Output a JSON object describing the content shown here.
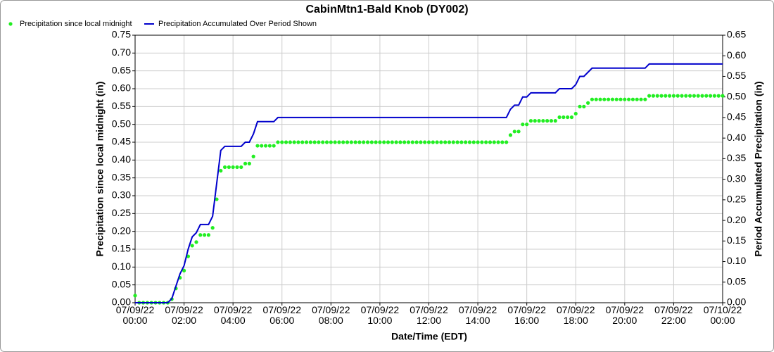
{
  "chart_data": {
    "type": "combo",
    "title": "CabinMtn1-Bald Knob (DY002)",
    "x_label": "Date/Time (EDT)",
    "y_label": "Precipitation since local midnight (in)",
    "y2_label": "Period Accumulated Precipitation (in)",
    "grid": true,
    "legend": "top-left",
    "x": [
      0,
      10,
      20,
      30,
      40,
      50,
      60,
      70,
      80,
      90,
      100,
      110,
      120,
      130,
      140,
      150,
      160,
      170,
      180,
      190,
      200,
      210,
      220,
      230,
      240,
      250,
      260,
      270,
      280,
      290,
      300,
      310,
      320,
      330,
      340,
      350,
      360,
      370,
      380,
      390,
      400,
      410,
      420,
      430,
      440,
      450,
      460,
      470,
      480,
      490,
      500,
      510,
      520,
      530,
      540,
      550,
      560,
      570,
      580,
      590,
      600,
      610,
      620,
      630,
      640,
      650,
      660,
      670,
      680,
      690,
      700,
      710,
      720,
      730,
      740,
      750,
      760,
      770,
      780,
      790,
      800,
      810,
      820,
      830,
      840,
      850,
      860,
      870,
      880,
      890,
      900,
      910,
      920,
      930,
      940,
      950,
      960,
      970,
      980,
      990,
      1000,
      1010,
      1020,
      1030,
      1040,
      1050,
      1060,
      1070,
      1080,
      1090,
      1100,
      1110,
      1120,
      1130,
      1140,
      1150,
      1160,
      1170,
      1180,
      1190,
      1200,
      1210,
      1220,
      1230,
      1240,
      1250,
      1260,
      1270,
      1280,
      1290,
      1300,
      1310,
      1320,
      1330,
      1340,
      1350,
      1360,
      1370,
      1380,
      1390,
      1400,
      1410,
      1420,
      1430,
      1440
    ],
    "xlim": [
      0,
      1440
    ],
    "xticks": [
      {
        "value": 0,
        "label": "07/09/22 00:00"
      },
      {
        "value": 120,
        "label": "07/09/22 02:00"
      },
      {
        "value": 240,
        "label": "07/09/22 04:00"
      },
      {
        "value": 360,
        "label": "07/09/22 06:00"
      },
      {
        "value": 480,
        "label": "07/09/22 08:00"
      },
      {
        "value": 600,
        "label": "07/09/22 10:00"
      },
      {
        "value": 720,
        "label": "07/09/22 12:00"
      },
      {
        "value": 840,
        "label": "07/09/22 14:00"
      },
      {
        "value": 960,
        "label": "07/09/22 16:00"
      },
      {
        "value": 1080,
        "label": "07/09/22 18:00"
      },
      {
        "value": 1200,
        "label": "07/09/22 20:00"
      },
      {
        "value": 1320,
        "label": "07/09/22 22:00"
      },
      {
        "value": 1440,
        "label": "07/10/22 00:00"
      }
    ],
    "ylim": [
      0,
      0.75
    ],
    "yticks": [
      {
        "value": 0,
        "label": "0.00"
      },
      {
        "value": 0.05,
        "label": "0.05"
      },
      {
        "value": 0.1,
        "label": "0.10"
      },
      {
        "value": 0.15,
        "label": "0.15"
      },
      {
        "value": 0.2,
        "label": "0.20"
      },
      {
        "value": 0.25,
        "label": "0.25"
      },
      {
        "value": 0.3,
        "label": "0.30"
      },
      {
        "value": 0.35,
        "label": "0.35"
      },
      {
        "value": 0.4,
        "label": "0.40"
      },
      {
        "value": 0.45,
        "label": "0.45"
      },
      {
        "value": 0.5,
        "label": "0.50"
      },
      {
        "value": 0.55,
        "label": "0.55"
      },
      {
        "value": 0.6,
        "label": "0.60"
      },
      {
        "value": 0.65,
        "label": "0.65"
      },
      {
        "value": 0.7,
        "label": "0.70"
      },
      {
        "value": 0.75,
        "label": "0.75"
      }
    ],
    "y2lim": [
      0,
      0.65
    ],
    "y2ticks": [
      {
        "value": 0,
        "label": "0.00"
      },
      {
        "value": 0.05,
        "label": "0.05"
      },
      {
        "value": 0.1,
        "label": "0.10"
      },
      {
        "value": 0.15,
        "label": "0.15"
      },
      {
        "value": 0.2,
        "label": "0.20"
      },
      {
        "value": 0.25,
        "label": "0.25"
      },
      {
        "value": 0.3,
        "label": "0.30"
      },
      {
        "value": 0.35,
        "label": "0.35"
      },
      {
        "value": 0.4,
        "label": "0.40"
      },
      {
        "value": 0.45,
        "label": "0.45"
      },
      {
        "value": 0.5,
        "label": "0.50"
      },
      {
        "value": 0.55,
        "label": "0.55"
      },
      {
        "value": 0.6,
        "label": "0.60"
      },
      {
        "value": 0.65,
        "label": "0.65"
      }
    ],
    "series": [
      {
        "name": "Precipitation since local midnight",
        "type": "scatter",
        "color": "#22ee22",
        "values": [
          0.02,
          0,
          0,
          0,
          0,
          0,
          0,
          0,
          0,
          0.01,
          0.04,
          0.07,
          0.09,
          0.13,
          0.16,
          0.17,
          0.19,
          0.19,
          0.19,
          0.21,
          0.29,
          0.37,
          0.38,
          0.38,
          0.38,
          0.38,
          0.38,
          0.39,
          0.39,
          0.41,
          0.44,
          0.44,
          0.44,
          0.44,
          0.44,
          0.45,
          0.45,
          0.45,
          0.45,
          0.45,
          0.45,
          0.45,
          0.45,
          0.45,
          0.45,
          0.45,
          0.45,
          0.45,
          0.45,
          0.45,
          0.45,
          0.45,
          0.45,
          0.45,
          0.45,
          0.45,
          0.45,
          0.45,
          0.45,
          0.45,
          0.45,
          0.45,
          0.45,
          0.45,
          0.45,
          0.45,
          0.45,
          0.45,
          0.45,
          0.45,
          0.45,
          0.45,
          0.45,
          0.45,
          0.45,
          0.45,
          0.45,
          0.45,
          0.45,
          0.45,
          0.45,
          0.45,
          0.45,
          0.45,
          0.45,
          0.45,
          0.45,
          0.45,
          0.45,
          0.45,
          0.45,
          0.45,
          0.47,
          0.48,
          0.48,
          0.5,
          0.5,
          0.51,
          0.51,
          0.51,
          0.51,
          0.51,
          0.51,
          0.51,
          0.52,
          0.52,
          0.52,
          0.52,
          0.53,
          0.55,
          0.55,
          0.56,
          0.57,
          0.57,
          0.57,
          0.57,
          0.57,
          0.57,
          0.57,
          0.57,
          0.57,
          0.57,
          0.57,
          0.57,
          0.57,
          0.57,
          0.58,
          0.58,
          0.58,
          0.58,
          0.58,
          0.58,
          0.58,
          0.58,
          0.58,
          0.58,
          0.58,
          0.58,
          0.58,
          0.58,
          0.58,
          0.58,
          0.58,
          0.58,
          0.58
        ]
      },
      {
        "name": "Precipitation Accumulated Over Period Shown",
        "type": "line",
        "axis": "y2",
        "color": "#0000cc",
        "values": [
          0,
          0,
          0,
          0,
          0,
          0,
          0,
          0,
          0,
          0.01,
          0.04,
          0.07,
          0.09,
          0.13,
          0.16,
          0.17,
          0.19,
          0.19,
          0.19,
          0.21,
          0.29,
          0.37,
          0.38,
          0.38,
          0.38,
          0.38,
          0.38,
          0.39,
          0.39,
          0.41,
          0.44,
          0.44,
          0.44,
          0.44,
          0.44,
          0.45,
          0.45,
          0.45,
          0.45,
          0.45,
          0.45,
          0.45,
          0.45,
          0.45,
          0.45,
          0.45,
          0.45,
          0.45,
          0.45,
          0.45,
          0.45,
          0.45,
          0.45,
          0.45,
          0.45,
          0.45,
          0.45,
          0.45,
          0.45,
          0.45,
          0.45,
          0.45,
          0.45,
          0.45,
          0.45,
          0.45,
          0.45,
          0.45,
          0.45,
          0.45,
          0.45,
          0.45,
          0.45,
          0.45,
          0.45,
          0.45,
          0.45,
          0.45,
          0.45,
          0.45,
          0.45,
          0.45,
          0.45,
          0.45,
          0.45,
          0.45,
          0.45,
          0.45,
          0.45,
          0.45,
          0.45,
          0.45,
          0.47,
          0.48,
          0.48,
          0.5,
          0.5,
          0.51,
          0.51,
          0.51,
          0.51,
          0.51,
          0.51,
          0.51,
          0.52,
          0.52,
          0.52,
          0.52,
          0.53,
          0.55,
          0.55,
          0.56,
          0.57,
          0.57,
          0.57,
          0.57,
          0.57,
          0.57,
          0.57,
          0.57,
          0.57,
          0.57,
          0.57,
          0.57,
          0.57,
          0.57,
          0.58,
          0.58,
          0.58,
          0.58,
          0.58,
          0.58,
          0.58,
          0.58,
          0.58,
          0.58,
          0.58,
          0.58,
          0.58,
          0.58,
          0.58,
          0.58,
          0.58,
          0.58,
          0.58
        ]
      }
    ]
  }
}
